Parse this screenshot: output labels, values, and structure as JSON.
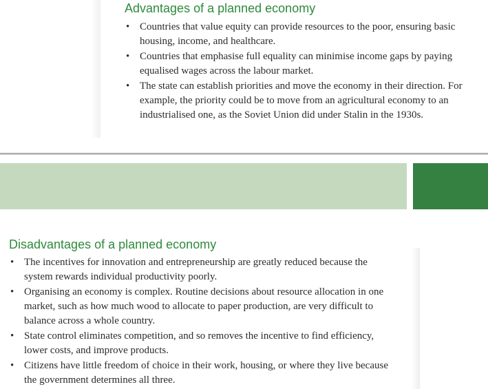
{
  "advantages": {
    "heading": "Advantages of a planned economy",
    "items": [
      "Countries that value equity can provide resources to the poor, ensuring basic housing, income, and healthcare.",
      "Countries that emphasise full equality can minimise income gaps by paying equalised wages across the labour market.",
      "The state can establish priorities and move the economy in their direction. For example, the priority could be to move from an agricultural economy to an industrialised one, as the Soviet Union did under Stalin in the 1930s."
    ]
  },
  "disadvantages": {
    "heading": "Disadvantages of a planned economy",
    "items": [
      "The incentives for innovation and entrepreneurship are greatly reduced because the system rewards individual productivity poorly.",
      "Organising an economy is complex. Routine decisions about resource allocation in one market, such as how much wood to allocate to paper production, are very difficult to balance across a whole country.",
      "State control eliminates competition, and so removes the incentive to find efficiency, lower costs, and improve products.",
      "Citizens have little freedom of choice in their work, housing, or where they live because the government determines all three."
    ]
  },
  "colors": {
    "heading_green": "#2f8a3c",
    "band_light": "#c5d9bf",
    "band_dark": "#348141"
  },
  "bullet_glyph": "•"
}
